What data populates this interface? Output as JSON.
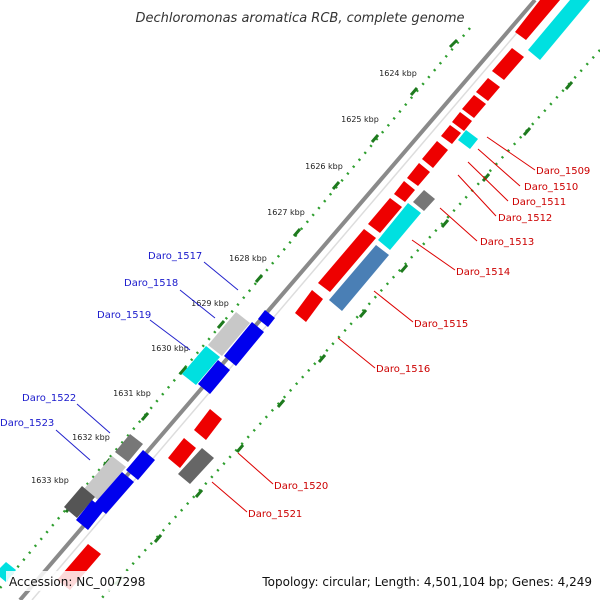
{
  "title": "Dechloromonas aromatica RCB, complete genome",
  "footer": {
    "accession": "Accession: NC_007298",
    "summary": "Topology: circular; Length: 4,501,104 bp; Genes: 4,249"
  },
  "scale_ticks": [
    "1624 kbp",
    "1625 kbp",
    "1626 kbp",
    "1627 kbp",
    "1628 kbp",
    "1629 kbp",
    "1630 kbp",
    "1631 kbp",
    "1632 kbp",
    "1633 kbp"
  ],
  "gene_labels_forward": [
    "Daro_1509",
    "Daro_1510",
    "Daro_1511",
    "Daro_1512",
    "Daro_1513",
    "Daro_1514",
    "Daro_1515",
    "Daro_1516",
    "Daro_1520",
    "Daro_1521"
  ],
  "gene_labels_reverse": [
    "Daro_1517",
    "Daro_1518",
    "Daro_1519",
    "Daro_1522",
    "Daro_1523"
  ],
  "colors": {
    "forward_cds": "#ee0000",
    "reverse_cds": "#0000ee",
    "highlight": "#00e0e0",
    "alt_highlight": "#4a7fb5",
    "grey": "#777777",
    "light_grey": "#c8c8c8",
    "backbone": "#888888",
    "dots": "#33aa33",
    "red_label": "#cc0000",
    "blue_label": "#1a1acc"
  }
}
